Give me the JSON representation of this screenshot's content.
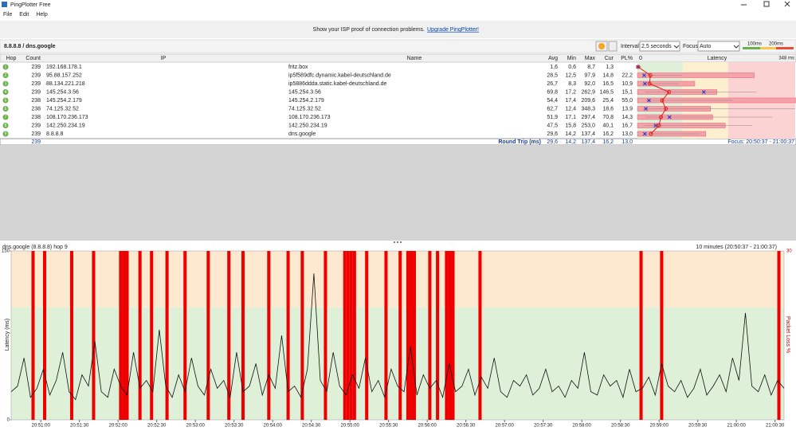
{
  "window": {
    "title": "PingPlotter Free",
    "menu": [
      "File",
      "Edit",
      "Help"
    ]
  },
  "banner": {
    "text": "Show your ISP proof of connection problems.",
    "link": "Upgrade PingPlotter!"
  },
  "toolbar": {
    "target": "8.8.8.8 / dns.google",
    "interval_label": "Interval",
    "interval": "2,5 seconds",
    "focus_label": "Focus",
    "focus": "Auto",
    "thresholds": [
      {
        "value": 100,
        "label": "100ms"
      },
      {
        "value": 200,
        "label": "200ms"
      }
    ]
  },
  "table": {
    "headers": [
      "Hop",
      "Count",
      "IP",
      "Name",
      "Avg",
      "Min",
      "Max",
      "Cur",
      "PL%",
      "Latency"
    ],
    "latency_min": 0,
    "latency_max": {
      "value": 348,
      "label": "348 ms"
    },
    "rows": [
      {
        "hop": 1,
        "count": 239,
        "ip": "192.168.178.1",
        "name": "fritz.box",
        "avg": {
          "value": 1.6,
          "label": "1,6"
        },
        "min": {
          "value": 0.6,
          "label": "0,6"
        },
        "max": {
          "value": 8.7,
          "label": "8,7"
        },
        "cur": {
          "value": 1.3,
          "label": "1,3"
        },
        "pl": null
      },
      {
        "hop": 2,
        "count": 239,
        "ip": "95.88.157.252",
        "name": "ip5f589dfc.dynamic.kabel-deutschland.de",
        "avg": {
          "value": 28.5,
          "label": "28,5"
        },
        "min": {
          "value": 12.5,
          "label": "12,5"
        },
        "max": {
          "value": 97.9,
          "label": "97,9"
        },
        "cur": {
          "value": 14.8,
          "label": "14,8"
        },
        "pl": {
          "value": 22.2,
          "label": "22,2"
        }
      },
      {
        "hop": 3,
        "count": 239,
        "ip": "88.134.221.218",
        "name": "ip5886ddda.static.kabel-deutschland.de",
        "avg": {
          "value": 26.7,
          "label": "26,7"
        },
        "min": {
          "value": 8.3,
          "label": "8,3"
        },
        "max": {
          "value": 92.0,
          "label": "92,0"
        },
        "cur": {
          "value": 16.5,
          "label": "16,5"
        },
        "pl": {
          "value": 10.9,
          "label": "10,9"
        }
      },
      {
        "hop": 4,
        "count": 239,
        "ip": "145.254.3.56",
        "name": "145.254.3.56",
        "avg": {
          "value": 69.8,
          "label": "69,8"
        },
        "min": {
          "value": 17.2,
          "label": "17,2"
        },
        "max": {
          "value": 262.9,
          "label": "262,9"
        },
        "cur": {
          "value": 146.5,
          "label": "146,5"
        },
        "pl": {
          "value": 15.1,
          "label": "15,1"
        }
      },
      {
        "hop": 5,
        "count": 238,
        "ip": "145.254.2.179",
        "name": "145.254.2.179",
        "avg": {
          "value": 54.4,
          "label": "54,4"
        },
        "min": {
          "value": 17.4,
          "label": "17,4"
        },
        "max": {
          "value": 209.6,
          "label": "209,6"
        },
        "cur": {
          "value": 25.4,
          "label": "25,4"
        },
        "pl": {
          "value": 55.0,
          "label": "55,0"
        }
      },
      {
        "hop": 6,
        "count": 238,
        "ip": "74.125.32.52",
        "name": "74.125.32.52",
        "avg": {
          "value": 62.7,
          "label": "62,7"
        },
        "min": {
          "value": 12.4,
          "label": "12,4"
        },
        "max": {
          "value": 348.3,
          "label": "348,3"
        },
        "cur": {
          "value": 18.6,
          "label": "18,6"
        },
        "pl": {
          "value": 13.9,
          "label": "13,9"
        }
      },
      {
        "hop": 7,
        "count": 238,
        "ip": "108.170.236.173",
        "name": "108.170.236.173",
        "avg": {
          "value": 51.9,
          "label": "51,9"
        },
        "min": {
          "value": 17.1,
          "label": "17,1"
        },
        "max": {
          "value": 297.4,
          "label": "297,4"
        },
        "cur": {
          "value": 70.8,
          "label": "70,8"
        },
        "pl": {
          "value": 14.3,
          "label": "14,3"
        }
      },
      {
        "hop": 8,
        "count": 239,
        "ip": "142.250.234.19",
        "name": "142.250.234.19",
        "avg": {
          "value": 47.5,
          "label": "47,5"
        },
        "min": {
          "value": 15.8,
          "label": "15,8"
        },
        "max": {
          "value": 253.0,
          "label": "253,0"
        },
        "cur": {
          "value": 40.1,
          "label": "40,1"
        },
        "pl": {
          "value": 16.7,
          "label": "16,7"
        }
      },
      {
        "hop": 9,
        "count": 239,
        "ip": "8.8.8.8",
        "name": "dns.google",
        "avg": {
          "value": 29.6,
          "label": "29,6"
        },
        "min": {
          "value": 14.2,
          "label": "14,2"
        },
        "max": {
          "value": 137.4,
          "label": "137,4"
        },
        "cur": {
          "value": 16.2,
          "label": "16,2"
        },
        "pl": {
          "value": 13.0,
          "label": "13,0"
        }
      }
    ],
    "summary": {
      "count": 239,
      "label": "Round Trip (ms)",
      "avg": "29,6",
      "min": "14,2",
      "max": "137,4",
      "cur": "16,2",
      "pl": "13,0",
      "focus": "Focus: 20:50:37 - 21:00:37"
    }
  },
  "graph": {
    "title": "dns.google (8.8.8.8) hop 9",
    "range": "10 minutes (20:50:37 - 21:00:37)",
    "y_label": "Latency (ms)",
    "y2_label": "Packet Loss %",
    "ylim": [
      0,
      150
    ],
    "yticks": [
      0,
      150
    ],
    "y2lim": [
      0,
      30
    ],
    "y2ticks": [
      30
    ],
    "xlim": [
      0,
      600
    ],
    "xticks": [
      {
        "value": 23,
        "label": "20:51:00"
      },
      {
        "value": 53,
        "label": "20:51:30"
      },
      {
        "value": 83,
        "label": "20:52:00"
      },
      {
        "value": 113,
        "label": "20:52:30"
      },
      {
        "value": 143,
        "label": "20:53:00"
      },
      {
        "value": 173,
        "label": "20:53:30"
      },
      {
        "value": 203,
        "label": "20:54:00"
      },
      {
        "value": 233,
        "label": "20:54:30"
      },
      {
        "value": 263,
        "label": "20:55:00"
      },
      {
        "value": 293,
        "label": "20:55:30"
      },
      {
        "value": 323,
        "label": "20:56:00"
      },
      {
        "value": 353,
        "label": "20:56:30"
      },
      {
        "value": 383,
        "label": "20:57:00"
      },
      {
        "value": 413,
        "label": "20:57:30"
      },
      {
        "value": 443,
        "label": "20:58:00"
      },
      {
        "value": 473,
        "label": "20:58:30"
      },
      {
        "value": 503,
        "label": "20:59:00"
      },
      {
        "value": 533,
        "label": "20:59:30"
      },
      {
        "value": 563,
        "label": "21:00:00"
      },
      {
        "value": 593,
        "label": "21:00:30"
      }
    ],
    "latency": [
      25,
      30,
      55,
      20,
      28,
      45,
      22,
      35,
      60,
      25,
      18,
      40,
      30,
      70,
      25,
      20,
      45,
      30,
      22,
      60,
      28,
      35,
      25,
      80,
      30,
      20,
      40,
      25,
      55,
      30,
      22,
      45,
      28,
      35,
      20,
      60,
      25,
      30,
      50,
      22,
      40,
      28,
      75,
      25,
      30,
      20,
      45,
      130,
      35,
      25,
      60,
      30,
      22,
      40,
      28,
      55,
      25,
      35,
      20,
      45,
      30,
      25,
      65,
      22,
      40,
      28,
      35,
      20,
      50,
      25,
      30,
      45,
      22,
      38,
      28,
      55,
      25,
      20,
      35,
      30,
      40,
      22,
      28,
      45,
      25,
      30,
      20,
      35,
      28,
      60,
      25,
      22,
      40,
      30,
      35,
      20,
      45,
      25,
      28,
      38,
      22,
      50,
      30,
      25,
      35,
      20,
      28,
      45,
      22,
      30,
      40,
      25,
      55,
      35,
      95,
      30,
      25,
      40,
      22,
      35,
      28
    ],
    "loss": {
      "x": [
        17,
        26,
        47,
        64,
        85,
        87.5,
        90,
        100,
        109,
        121,
        135,
        153,
        169,
        180,
        200,
        215,
        226,
        244,
        259,
        261.5,
        264,
        266.5,
        276,
        291,
        302,
        308,
        310.5,
        313,
        325,
        331,
        338,
        340.5,
        343,
        364,
        489,
        505,
        596
      ],
      "values": [
        30,
        30,
        30,
        30,
        30,
        30,
        30,
        30,
        30,
        30,
        30,
        30,
        30,
        30,
        30,
        30,
        30,
        30,
        30,
        30,
        30,
        30,
        30,
        30,
        30,
        30,
        30,
        30,
        30,
        30,
        30,
        30,
        30,
        30,
        30,
        30,
        30
      ]
    }
  }
}
